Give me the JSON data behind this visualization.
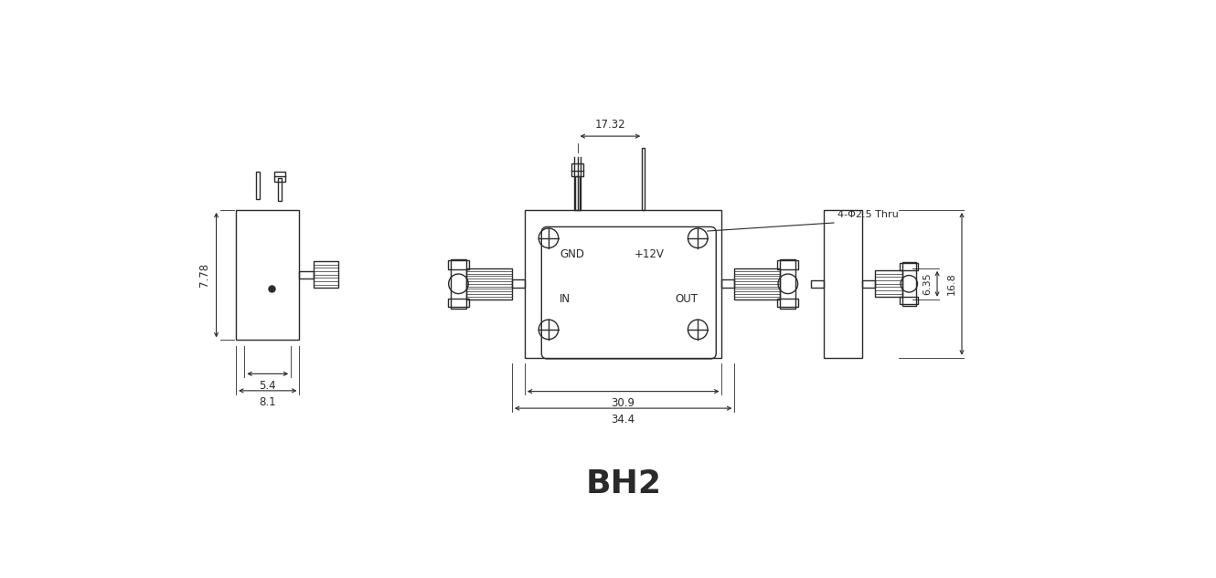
{
  "bg_color": "#ffffff",
  "line_color": "#2a2a2a",
  "dim_color": "#2a2a2a",
  "title": "BH2",
  "title_fontsize": 26,
  "annotations": {
    "gnd": "GND",
    "+12v": "+12V",
    "in": "IN",
    "out": "OUT",
    "hole_label": "4-Φ2.5 Thru",
    "dim_1732": "17.32",
    "dim_778": "7.78",
    "dim_54": "5.4",
    "dim_81": "8.1",
    "dim_309": "30.9",
    "dim_344": "34.4",
    "dim_635": "6.35",
    "dim_168": "16.8"
  }
}
